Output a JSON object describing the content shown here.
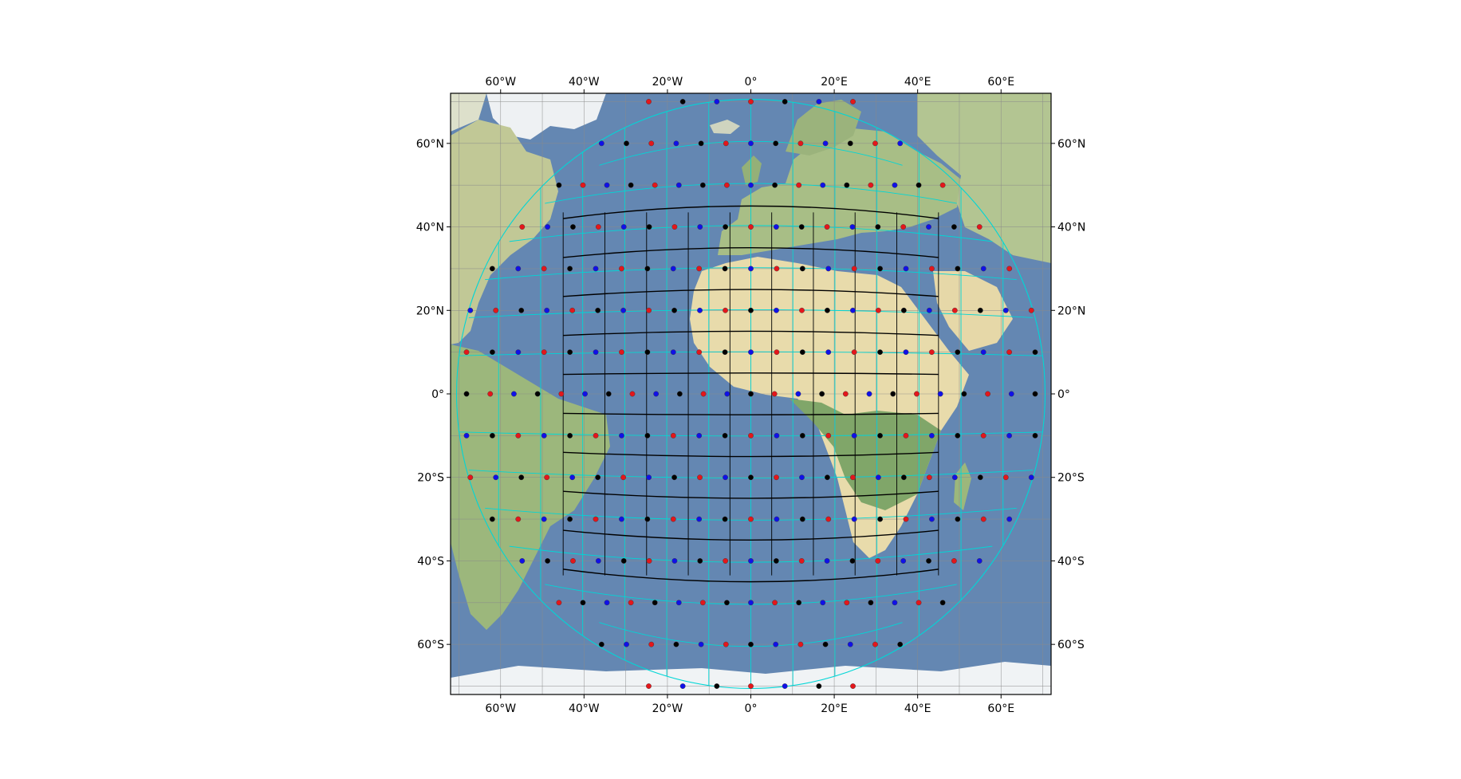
{
  "map": {
    "type": "map",
    "projection_region": {
      "lon_range": [
        -72,
        72
      ],
      "lat_range": [
        -72,
        72
      ]
    },
    "gridline_step_deg": 10,
    "graticule": {
      "lon_ticks": [
        {
          "value": -60,
          "label": "60°W"
        },
        {
          "value": -40,
          "label": "40°W"
        },
        {
          "value": -20,
          "label": "20°W"
        },
        {
          "value": 0,
          "label": "0°"
        },
        {
          "value": 20,
          "label": "20°E"
        },
        {
          "value": 40,
          "label": "40°E"
        },
        {
          "value": 60,
          "label": "60°E"
        }
      ],
      "lat_ticks": [
        {
          "value": 60,
          "label": "60°N"
        },
        {
          "value": 40,
          "label": "40°N"
        },
        {
          "value": 20,
          "label": "20°N"
        },
        {
          "value": 0,
          "label": "0°"
        },
        {
          "value": -20,
          "label": "20°S"
        },
        {
          "value": -40,
          "label": "40°S"
        },
        {
          "value": -60,
          "label": "60°S"
        }
      ]
    },
    "colors": {
      "ocean": "#4f77a8",
      "land": "#c8c98e",
      "desert": "#e9dcaa",
      "forest": "#6f9a55",
      "ice": "#eef2f4",
      "grid_curves": "#00d6d6",
      "point_black": "#000000",
      "point_red": "#e4161b",
      "point_blue": "#1010e8",
      "domain_outline": "#000000",
      "gridlines": "#8a8a8a"
    },
    "highlighted_region": {
      "lon_range": [
        -45,
        45
      ],
      "lat_range": [
        -45,
        45
      ]
    },
    "point_rings": [
      {
        "lat": 70,
        "count": 7,
        "colors": [
          "red",
          "black",
          "blue"
        ]
      },
      {
        "lat": 60,
        "count": 13,
        "colors": [
          "blue",
          "black",
          "red"
        ]
      },
      {
        "lat": 50,
        "count": 17,
        "colors": [
          "black",
          "red",
          "blue"
        ]
      },
      {
        "lat": 40,
        "count": 19,
        "colors": [
          "red",
          "blue",
          "black"
        ]
      },
      {
        "lat": 30,
        "count": 21,
        "colors": [
          "black",
          "blue",
          "red"
        ]
      },
      {
        "lat": 20,
        "count": 23,
        "colors": [
          "blue",
          "red",
          "black"
        ]
      },
      {
        "lat": 10,
        "count": 23,
        "colors": [
          "red",
          "black",
          "blue"
        ]
      },
      {
        "lat": 0,
        "count": 25,
        "colors": [
          "black",
          "red",
          "blue"
        ]
      },
      {
        "lat": -10,
        "count": 23,
        "colors": [
          "blue",
          "black",
          "red"
        ]
      },
      {
        "lat": -20,
        "count": 23,
        "colors": [
          "red",
          "blue",
          "black"
        ]
      },
      {
        "lat": -30,
        "count": 21,
        "colors": [
          "black",
          "red",
          "blue"
        ]
      },
      {
        "lat": -40,
        "count": 19,
        "colors": [
          "blue",
          "black",
          "red"
        ]
      },
      {
        "lat": -50,
        "count": 17,
        "colors": [
          "red",
          "black",
          "blue"
        ]
      },
      {
        "lat": -60,
        "count": 13,
        "colors": [
          "black",
          "blue",
          "red"
        ]
      },
      {
        "lat": -70,
        "count": 7,
        "colors": [
          "red",
          "blue",
          "black"
        ]
      }
    ]
  }
}
